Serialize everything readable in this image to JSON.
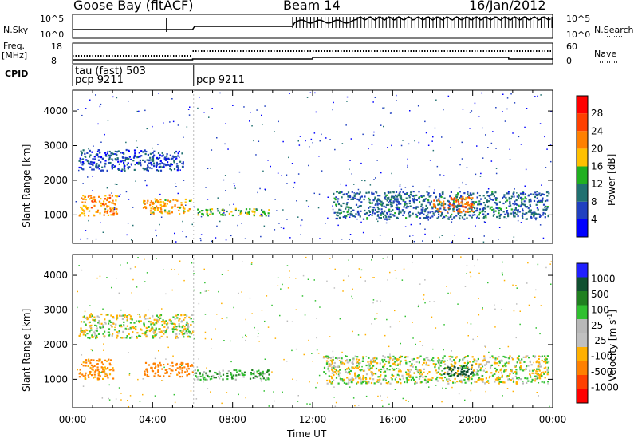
{
  "header": {
    "station": "Goose Bay (fitACF)",
    "beam": "Beam 14",
    "date": "16/Jan/2012"
  },
  "top_panels": {
    "nsky_label": "N.Sky",
    "nsky_ticks": [
      "10^5",
      "10^0"
    ],
    "nsearch_label": "N.Search",
    "nsearch_ticks": [
      "10^5",
      "10^0"
    ],
    "freq_label": "Freq.",
    "freq_unit": "[MHz]",
    "freq_ticks": [
      "18",
      "8"
    ],
    "nave_label": "Nave",
    "nave_ticks": [
      "60",
      "0"
    ],
    "cpid_label": "CPID",
    "cpid_entries": [
      {
        "name": "tau (fast) 503",
        "mode": "pcp 9211"
      },
      {
        "name": "",
        "mode": "pcp 9211"
      }
    ]
  },
  "colors": {
    "power_scale": [
      "#0000ff",
      "#2040c0",
      "#207070",
      "#20b020",
      "#ffc000",
      "#ff8000",
      "#ff4000",
      "#ff0000"
    ],
    "velocity_scale": [
      "#ff0000",
      "#ff4000",
      "#ff8000",
      "#ffb000",
      "#c0c0c0",
      "#b8b8b8",
      "#30c030",
      "#208020",
      "#105030",
      "#2020ff"
    ]
  },
  "chart_data": [
    {
      "type": "heatmap",
      "title": "",
      "panel": "power",
      "xlabel": "",
      "ylabel": "Slant Range [km]",
      "x_ticks": [
        "00:00",
        "04:00",
        "08:00",
        "12:00",
        "16:00",
        "20:00",
        "00:00"
      ],
      "y_ticks": [
        1000,
        2000,
        3000,
        4000
      ],
      "ylim": [
        180,
        4600
      ],
      "xlim_hours": [
        0,
        24
      ],
      "colorbar": {
        "label": "Power [dB]",
        "ticks": [
          "4",
          "8",
          "12",
          "16",
          "20",
          "24",
          "28"
        ],
        "range": [
          0,
          30
        ]
      },
      "series": [
        {
          "name": "",
          "regions": [
            {
              "t": [
                0.3,
                2.2
              ],
              "range": [
                1000,
                1600
              ],
              "level": 20
            },
            {
              "t": [
                0.3,
                5.5
              ],
              "range": [
                2300,
                2900
              ],
              "level": 6
            },
            {
              "t": [
                3.5,
                5.9
              ],
              "range": [
                1050,
                1500
              ],
              "level": 18
            },
            {
              "t": [
                6.0,
                9.8
              ],
              "range": [
                1000,
                1200
              ],
              "level": 14
            },
            {
              "t": [
                13.0,
                23.8
              ],
              "range": [
                900,
                1700
              ],
              "level": 8
            },
            {
              "t": [
                18.0,
                20.0
              ],
              "range": [
                1100,
                1550
              ],
              "level": 22
            }
          ]
        }
      ]
    },
    {
      "type": "heatmap",
      "title": "",
      "panel": "velocity",
      "xlabel": "Time UT",
      "ylabel": "Slant Range [km]",
      "x_ticks": [
        "00:00",
        "04:00",
        "08:00",
        "12:00",
        "16:00",
        "20:00",
        "00:00"
      ],
      "y_ticks": [
        1000,
        2000,
        3000,
        4000
      ],
      "ylim": [
        180,
        4600
      ],
      "xlim_hours": [
        0,
        24
      ],
      "colorbar": {
        "label": "Velocity [m s^-1]",
        "ticks": [
          "1000",
          "500",
          "100",
          "25",
          "-25",
          "-100",
          "-500",
          "-1000"
        ],
        "range": [
          -1000,
          1000
        ]
      },
      "series": [
        {
          "name": "",
          "regions": [
            {
              "t": [
                0.3,
                2.0
              ],
              "range": [
                1000,
                1600
              ],
              "level": -120
            },
            {
              "t": [
                0.3,
                6.0
              ],
              "range": [
                2200,
                2900
              ],
              "level": 0
            },
            {
              "t": [
                3.5,
                6.0
              ],
              "range": [
                1100,
                1500
              ],
              "level": -300
            },
            {
              "t": [
                6.0,
                9.8
              ],
              "range": [
                1000,
                1300
              ],
              "level": 80
            },
            {
              "t": [
                12.5,
                23.8
              ],
              "range": [
                900,
                1700
              ],
              "level": 0
            },
            {
              "t": [
                18.5,
                20.0
              ],
              "range": [
                1100,
                1450
              ],
              "level": 600
            }
          ]
        }
      ]
    }
  ]
}
